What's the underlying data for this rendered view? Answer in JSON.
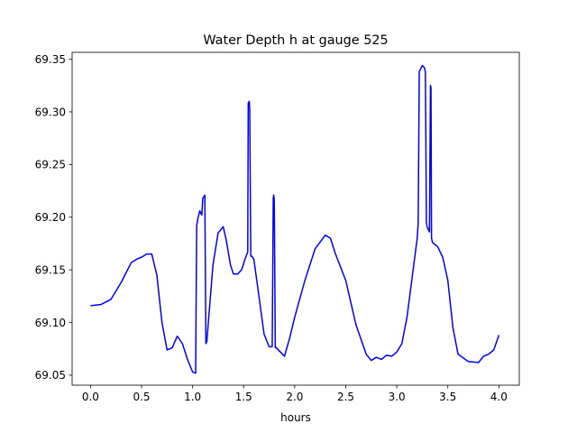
{
  "chart_data": {
    "type": "line",
    "title": "Water Depth h at gauge 525",
    "xlabel": "hours",
    "ylabel": "",
    "xlim": [
      -0.18,
      4.2
    ],
    "ylim": [
      69.0405,
      69.3565
    ],
    "x_ticks": [
      0.0,
      0.5,
      1.0,
      1.5,
      2.0,
      2.5,
      3.0,
      3.5,
      4.0
    ],
    "x_tick_labels": [
      "0.0",
      "0.5",
      "1.0",
      "1.5",
      "2.0",
      "2.5",
      "3.0",
      "3.5",
      "4.0"
    ],
    "y_ticks": [
      69.05,
      69.1,
      69.15,
      69.2,
      69.25,
      69.3,
      69.35
    ],
    "y_tick_labels": [
      "69.05",
      "69.10",
      "69.15",
      "69.20",
      "69.25",
      "69.30",
      "69.35"
    ],
    "grid": false,
    "series": [
      {
        "color": "#0000ff",
        "x": [
          0.0,
          0.1,
          0.2,
          0.3,
          0.4,
          0.45,
          0.5,
          0.55,
          0.6,
          0.65,
          0.7,
          0.75,
          0.8,
          0.85,
          0.9,
          0.95,
          1.0,
          1.03,
          1.04,
          1.05,
          1.07,
          1.09,
          1.1,
          1.12,
          1.13,
          1.14,
          1.15,
          1.2,
          1.25,
          1.3,
          1.33,
          1.37,
          1.4,
          1.44,
          1.48,
          1.52,
          1.54,
          1.545,
          1.555,
          1.56,
          1.57,
          1.58,
          1.6,
          1.65,
          1.7,
          1.75,
          1.78,
          1.79,
          1.795,
          1.8,
          1.81,
          1.82,
          1.85,
          1.9,
          1.95,
          2.0,
          2.1,
          2.2,
          2.3,
          2.35,
          2.4,
          2.5,
          2.6,
          2.7,
          2.75,
          2.8,
          2.85,
          2.9,
          2.95,
          3.0,
          3.05,
          3.1,
          3.2,
          3.21,
          3.22,
          3.23,
          3.25,
          3.27,
          3.28,
          3.29,
          3.3,
          3.32,
          3.33,
          3.335,
          3.34,
          3.345,
          3.35,
          3.4,
          3.45,
          3.5,
          3.55,
          3.6,
          3.7,
          3.8,
          3.85,
          3.9,
          3.95,
          4.0
        ],
        "y": [
          69.116,
          69.117,
          69.122,
          69.138,
          69.157,
          69.16,
          69.162,
          69.165,
          69.165,
          69.145,
          69.1,
          69.074,
          69.076,
          69.087,
          69.08,
          69.065,
          69.053,
          69.052,
          69.192,
          69.198,
          69.206,
          69.202,
          69.218,
          69.221,
          69.08,
          69.082,
          69.095,
          69.155,
          69.185,
          69.191,
          69.178,
          69.155,
          69.146,
          69.146,
          69.15,
          69.162,
          69.167,
          69.308,
          69.31,
          69.302,
          69.163,
          69.163,
          69.16,
          69.125,
          69.089,
          69.077,
          69.077,
          69.218,
          69.221,
          69.216,
          69.076,
          69.076,
          69.073,
          69.068,
          69.085,
          69.105,
          69.14,
          69.17,
          69.183,
          69.18,
          69.165,
          69.14,
          69.098,
          69.07,
          69.064,
          69.067,
          69.065,
          69.069,
          69.068,
          69.072,
          69.08,
          69.105,
          69.18,
          69.195,
          69.338,
          69.34,
          69.344,
          69.342,
          69.338,
          69.195,
          69.19,
          69.186,
          69.325,
          69.323,
          69.18,
          69.178,
          69.176,
          69.172,
          69.162,
          69.14,
          69.095,
          69.07,
          69.063,
          69.062,
          69.068,
          69.07,
          69.074,
          69.088
        ]
      }
    ]
  }
}
